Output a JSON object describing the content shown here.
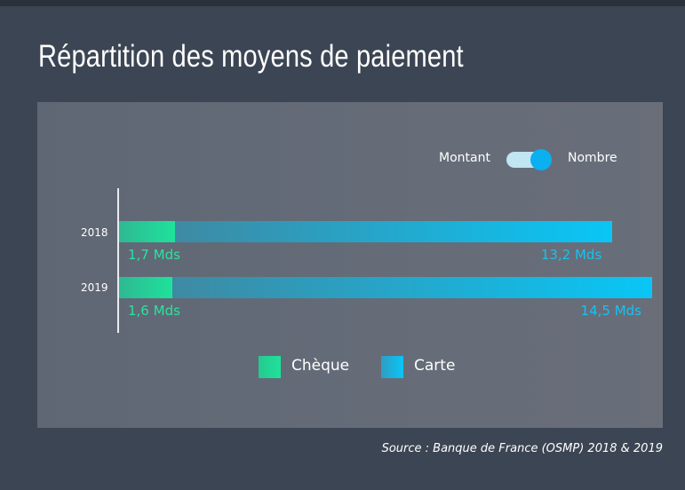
{
  "title": "Répartition des moyens de paiement",
  "toggle": {
    "left_label": "Montant",
    "right_label": "Nombre",
    "selected": "Nombre"
  },
  "source": "Source : Banque de France (OSMP) 2018 & 2019",
  "colors": {
    "cheque": "#1ee29b",
    "carte": "#09c6f6",
    "background": "#3c4553",
    "panel": "#646b77"
  },
  "chart_data": {
    "type": "bar",
    "orientation": "horizontal",
    "stacked": true,
    "categories": [
      "2018",
      "2019"
    ],
    "series": [
      {
        "name": "Chèque",
        "values": [
          1.7,
          1.6
        ],
        "labels": [
          "1,7 Mds",
          "1,6 Mds"
        ],
        "color": "#1ee29b"
      },
      {
        "name": "Carte",
        "values": [
          13.2,
          14.5
        ],
        "labels": [
          "13,2 Mds",
          "14,5 Mds"
        ],
        "color": "#09c6f6"
      }
    ],
    "unit": "Mds",
    "xlim": [
      0,
      16.1
    ],
    "grid": false,
    "legend": "bottom-center"
  }
}
